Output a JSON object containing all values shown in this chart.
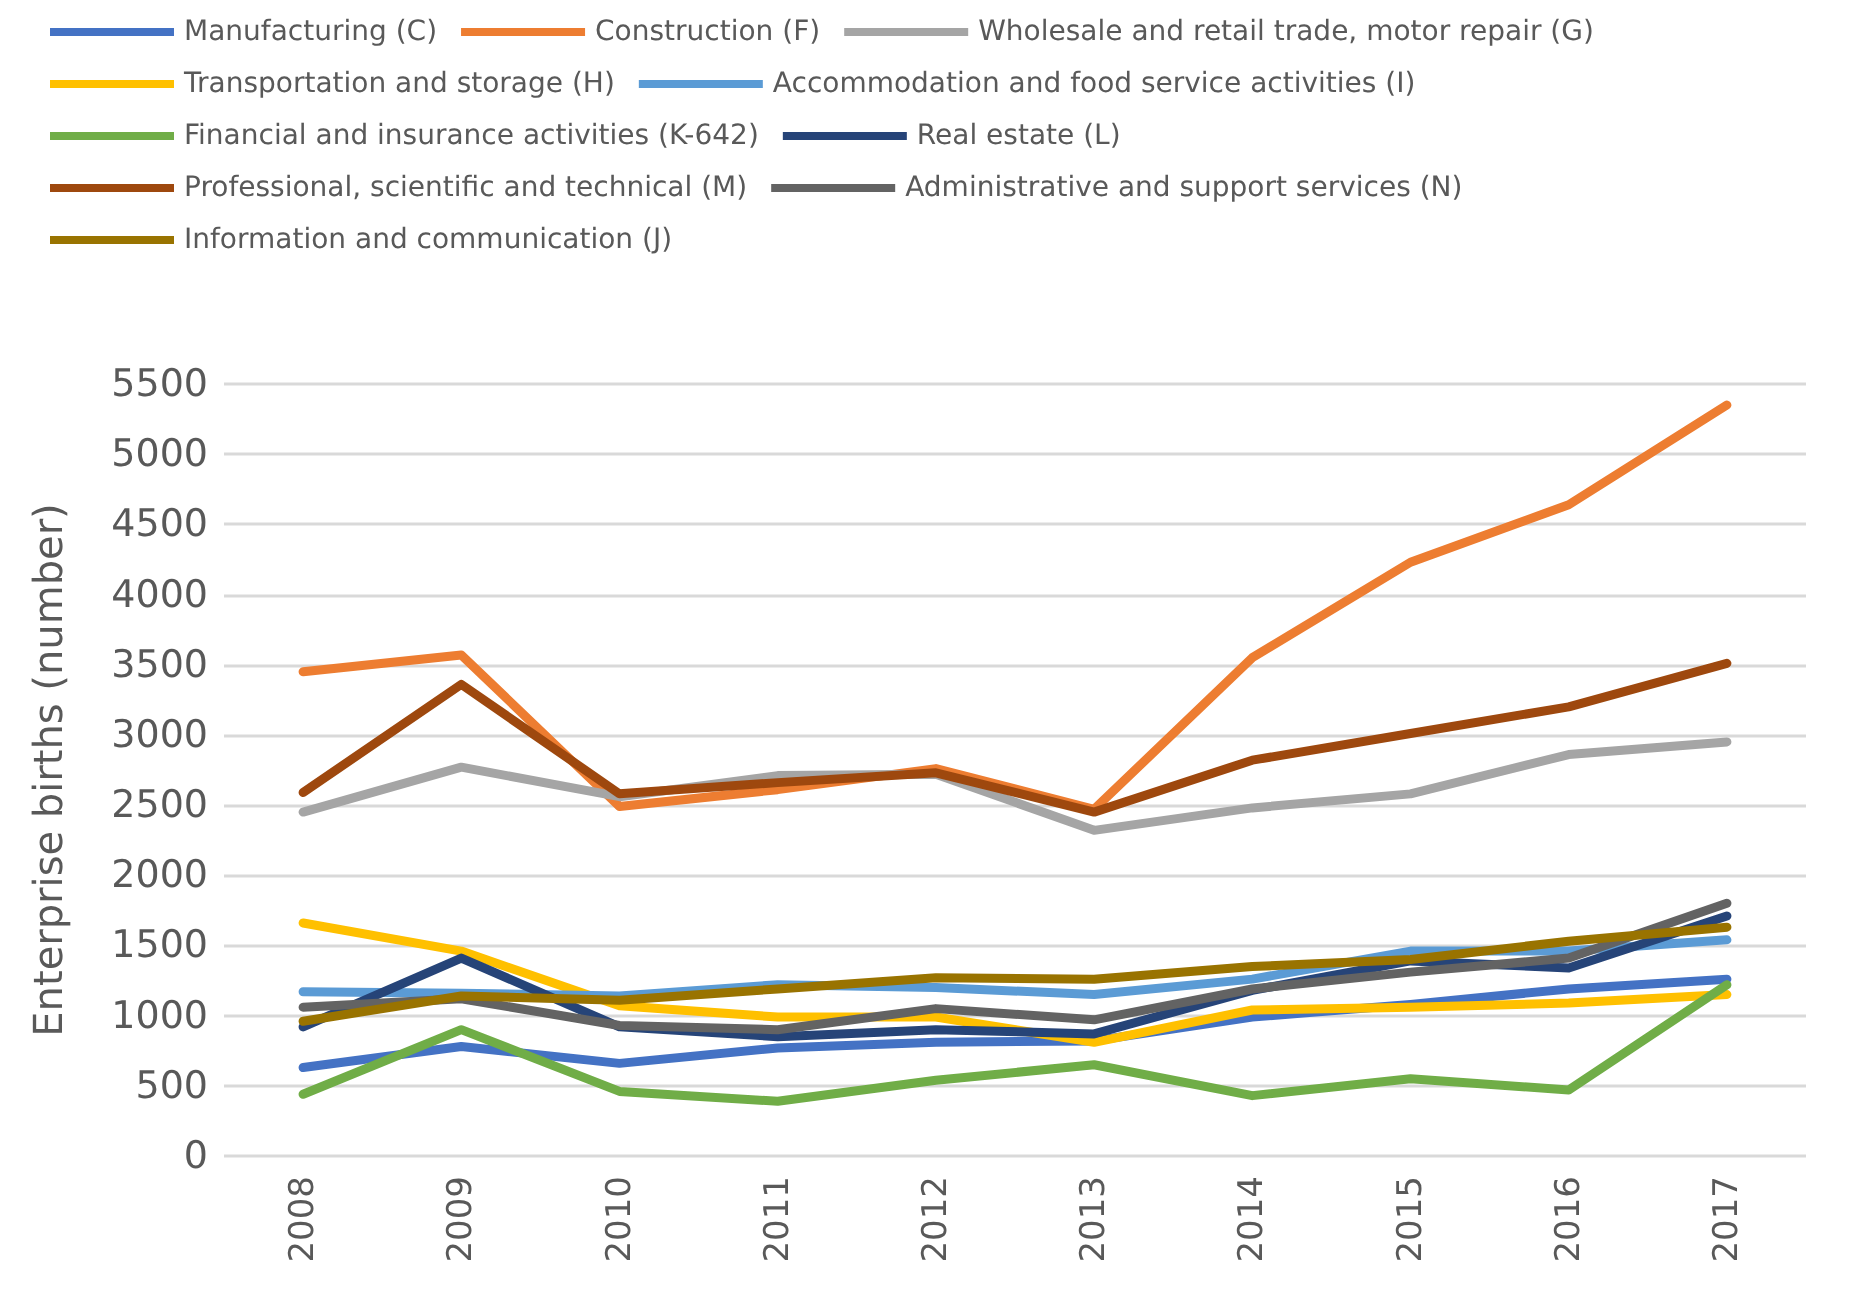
{
  "chart_data": {
    "type": "line",
    "ylabel": "Enterprise births (number)",
    "categories": [
      "2008",
      "2009",
      "2010",
      "2011",
      "2012",
      "2013",
      "2014",
      "2015",
      "2016",
      "2017"
    ],
    "ylim": [
      0,
      5500
    ],
    "yticks": [
      0,
      500,
      1000,
      1500,
      2000,
      2500,
      3000,
      3500,
      4000,
      4500,
      5000,
      5500
    ],
    "grid": "y",
    "legend": "top",
    "marker": "none",
    "line_style": "solid",
    "series": [
      {
        "name": "Manufacturing (C)",
        "color": "#4472c4",
        "values": [
          630,
          780,
          660,
          770,
          810,
          820,
          990,
          1080,
          1190,
          1260
        ]
      },
      {
        "name": "Construction (F)",
        "color": "#ed7d31",
        "values": [
          3450,
          3570,
          2490,
          2610,
          2760,
          2470,
          3550,
          4230,
          4640,
          5350
        ]
      },
      {
        "name": "Wholesale and retail trade, motor repair (G)",
        "color": "#a5a5a5",
        "values": [
          2450,
          2770,
          2560,
          2710,
          2720,
          2320,
          2480,
          2580,
          2860,
          2950
        ]
      },
      {
        "name": "Transportation and storage (H)",
        "color": "#ffc000",
        "values": [
          1660,
          1460,
          1070,
          990,
          990,
          810,
          1040,
          1060,
          1090,
          1150
        ]
      },
      {
        "name": "Accommodation and food service activities (I)",
        "color": "#5b9bd5",
        "values": [
          1170,
          1160,
          1140,
          1220,
          1200,
          1150,
          1260,
          1460,
          1460,
          1540
        ]
      },
      {
        "name": "Financial and insurance activities (K-642)",
        "color": "#70ad47",
        "values": [
          440,
          900,
          460,
          390,
          540,
          650,
          430,
          550,
          470,
          1220
        ]
      },
      {
        "name": "Real estate (L)",
        "color": "#264478",
        "values": [
          920,
          1410,
          920,
          850,
          900,
          870,
          1180,
          1390,
          1340,
          1710
        ]
      },
      {
        "name": "Professional, scientific and technical (M)",
        "color": "#9e480e",
        "values": [
          2590,
          3360,
          2580,
          2660,
          2730,
          2450,
          2820,
          3010,
          3200,
          3510
        ]
      },
      {
        "name": "Administrative and support services (N)",
        "color": "#636363",
        "values": [
          1060,
          1120,
          930,
          900,
          1050,
          970,
          1190,
          1310,
          1410,
          1800
        ]
      },
      {
        "name": "Information and communication (J)",
        "color": "#997300",
        "values": [
          960,
          1140,
          1110,
          1190,
          1270,
          1260,
          1350,
          1400,
          1530,
          1630
        ]
      }
    ]
  }
}
